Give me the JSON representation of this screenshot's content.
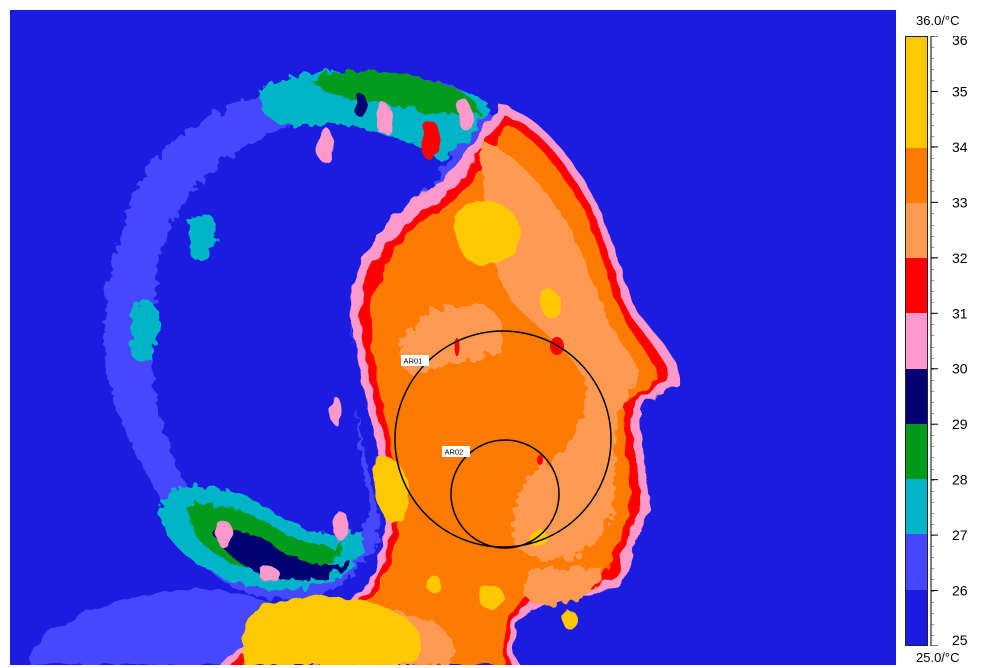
{
  "image": {
    "description_icon": "thermal-face-profile-icon",
    "background_color": "#1b1ce0"
  },
  "roi": [
    {
      "label": "AR01"
    },
    {
      "label": "AR02"
    }
  ],
  "scale": {
    "min_label": "25.0/°C",
    "max_label": "36.0/°C",
    "min": 25,
    "max": 36,
    "tick_labels": [
      "25",
      "26",
      "27",
      "28",
      "29",
      "30",
      "31",
      "32",
      "33",
      "34",
      "35",
      "36"
    ],
    "band_colors": [
      "#1b1ce0",
      "#4646ff",
      "#00b4c8",
      "#009a1a",
      "#000070",
      "#ff99cc",
      "#ff0000",
      "#ff9a52",
      "#ff7a00",
      "#ffc800",
      "#ffc800"
    ]
  }
}
